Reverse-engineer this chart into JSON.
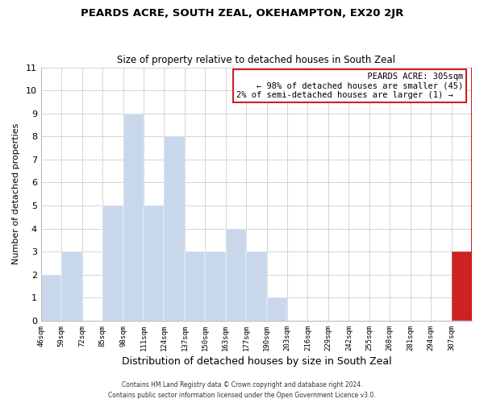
{
  "title": "PEARDS ACRE, SOUTH ZEAL, OKEHAMPTON, EX20 2JR",
  "subtitle": "Size of property relative to detached houses in South Zeal",
  "xlabel": "Distribution of detached houses by size in South Zeal",
  "ylabel": "Number of detached properties",
  "footnote1": "Contains HM Land Registry data © Crown copyright and database right 2024.",
  "footnote2": "Contains public sector information licensed under the Open Government Licence v3.0.",
  "bin_labels": [
    "46sqm",
    "59sqm",
    "72sqm",
    "85sqm",
    "98sqm",
    "111sqm",
    "124sqm",
    "137sqm",
    "150sqm",
    "163sqm",
    "177sqm",
    "190sqm",
    "203sqm",
    "216sqm",
    "229sqm",
    "242sqm",
    "255sqm",
    "268sqm",
    "281sqm",
    "294sqm",
    "307sqm"
  ],
  "bar_heights": [
    2,
    3,
    0,
    5,
    9,
    5,
    8,
    3,
    3,
    4,
    3,
    1,
    0,
    0,
    0,
    0,
    0,
    0,
    0,
    0,
    3
  ],
  "bar_color_normal": "#c8d8ea",
  "bar_color_highlight": "#cc2222",
  "highlight_index": 20,
  "ylim": [
    0,
    11
  ],
  "yticks": [
    0,
    1,
    2,
    3,
    4,
    5,
    6,
    7,
    8,
    9,
    10,
    11
  ],
  "annotation_title": "PEARDS ACRE: 305sqm",
  "annotation_line1": "← 98% of detached houses are smaller (45)",
  "annotation_line2": "2% of semi-detached houses are larger (1) →",
  "vline_color": "#cc2222",
  "background_color": "#ffffff",
  "grid_color": "#cccccc",
  "title_fontsize": 9.5,
  "subtitle_fontsize": 8.5,
  "ylabel_fontsize": 8,
  "xlabel_fontsize": 9
}
